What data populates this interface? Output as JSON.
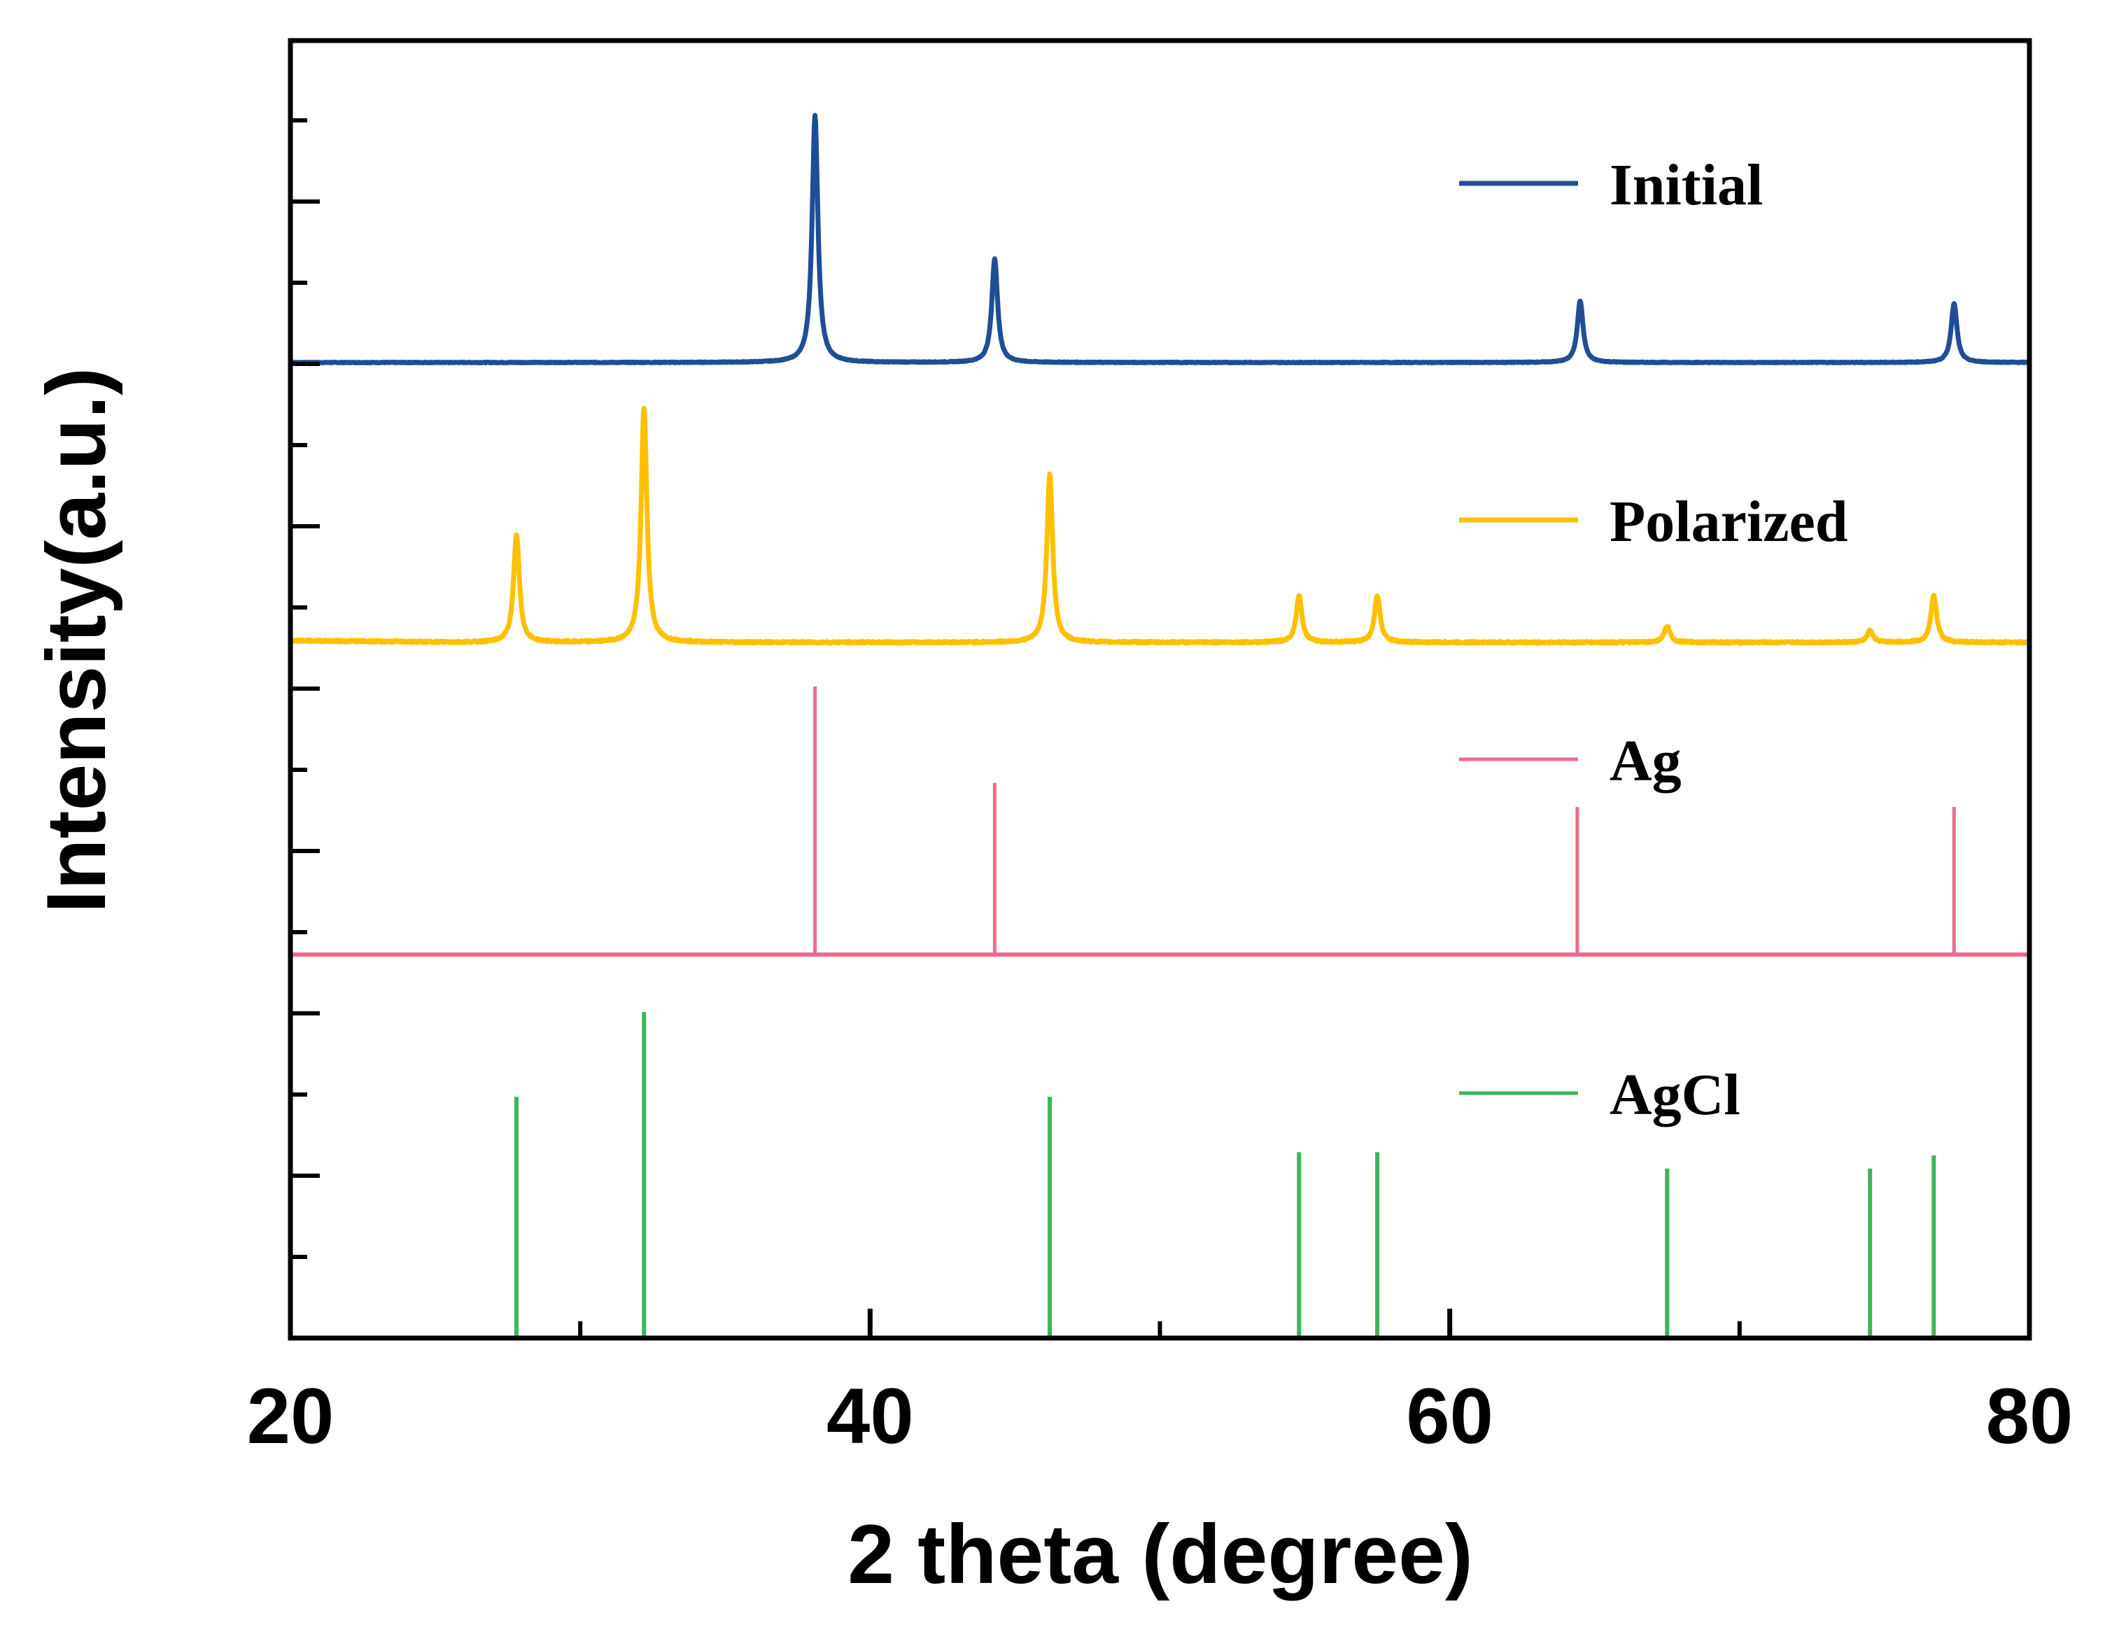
{
  "chart_data": {
    "type": "line",
    "title": "",
    "xlabel": "2 theta (degree)",
    "ylabel": "Intensity(a.u.)",
    "xlim": [
      20,
      80
    ],
    "x_ticks": [
      20,
      40,
      60,
      80
    ],
    "x_minor_ticks": [
      30,
      50,
      70
    ],
    "y_ticks_labeled": false,
    "legend_position": "right, beside each trace",
    "series": [
      {
        "name": "Initial",
        "kind": "pattern",
        "color": "#1f4e96",
        "rel_peaks": [
          {
            "x": 38.1,
            "h": 1.0
          },
          {
            "x": 44.3,
            "h": 0.42
          },
          {
            "x": 64.5,
            "h": 0.25
          },
          {
            "x": 77.4,
            "h": 0.24
          }
        ]
      },
      {
        "name": "Polarized",
        "kind": "pattern",
        "color": "#ffc000",
        "rel_peaks": [
          {
            "x": 27.8,
            "h": 0.46
          },
          {
            "x": 32.2,
            "h": 1.0
          },
          {
            "x": 46.2,
            "h": 0.72
          },
          {
            "x": 54.8,
            "h": 0.2
          },
          {
            "x": 57.5,
            "h": 0.2
          },
          {
            "x": 67.5,
            "h": 0.07
          },
          {
            "x": 74.5,
            "h": 0.05
          },
          {
            "x": 76.7,
            "h": 0.2
          }
        ]
      },
      {
        "name": "Ag",
        "kind": "reference",
        "color": "#ee6b8b",
        "sticks": [
          {
            "x": 38.1,
            "h": 1.0
          },
          {
            "x": 44.3,
            "h": 0.64
          },
          {
            "x": 64.4,
            "h": 0.55
          },
          {
            "x": 77.4,
            "h": 0.55
          }
        ]
      },
      {
        "name": "AgCl",
        "kind": "reference",
        "color": "#3cb55a",
        "sticks": [
          {
            "x": 27.8,
            "h": 0.74
          },
          {
            "x": 32.2,
            "h": 1.0
          },
          {
            "x": 46.2,
            "h": 0.74
          },
          {
            "x": 54.8,
            "h": 0.57
          },
          {
            "x": 57.5,
            "h": 0.57
          },
          {
            "x": 67.5,
            "h": 0.52
          },
          {
            "x": 74.5,
            "h": 0.52
          },
          {
            "x": 76.7,
            "h": 0.56
          }
        ]
      }
    ]
  }
}
